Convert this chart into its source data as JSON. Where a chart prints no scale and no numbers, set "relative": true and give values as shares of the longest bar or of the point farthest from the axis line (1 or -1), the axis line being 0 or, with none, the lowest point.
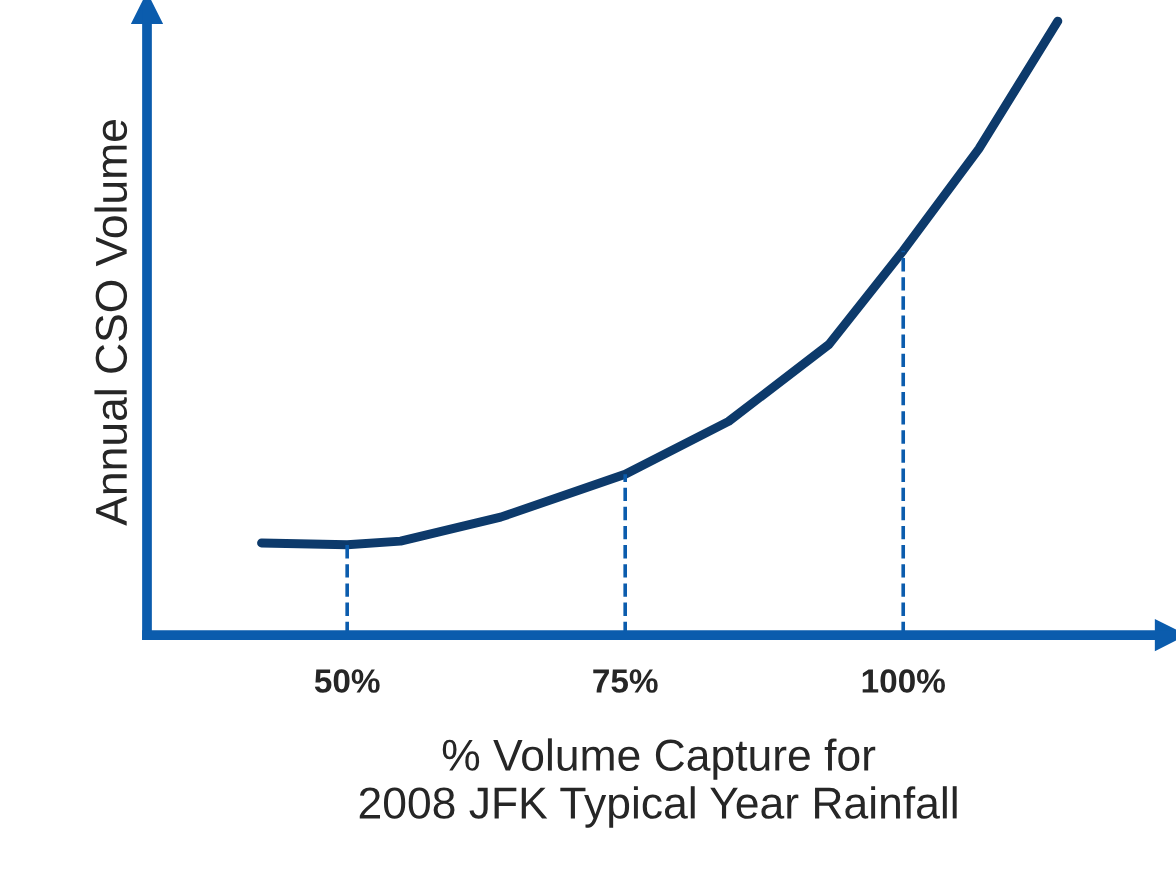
{
  "chart_data": {
    "type": "line",
    "relative": true,
    "xlabel": "% Volume Capture for\n2008 JFK Typical Year Rainfall",
    "ylabel": "Annual CSO Volume",
    "xlim": [
      32,
      124
    ],
    "xticks": [
      {
        "value": 50,
        "label": "50%"
      },
      {
        "value": 75,
        "label": "75%"
      },
      {
        "value": 100,
        "label": "100%"
      }
    ],
    "series": [
      {
        "color": "#0d3a6b",
        "x": [
          42.3,
          50,
          54.8,
          63.8,
          75,
          84.3,
          93.3,
          100,
          106.8,
          113.9
        ],
        "values": [
          0.15,
          0.147,
          0.153,
          0.192,
          0.262,
          0.348,
          0.473,
          0.626,
          0.792,
          1.0
        ]
      }
    ],
    "ref_lines": [
      {
        "axis": "x",
        "value": 50,
        "color": "#0b5cad",
        "line_style": "dashed"
      },
      {
        "axis": "x",
        "value": 75,
        "color": "#0b5cad",
        "line_style": "dashed"
      },
      {
        "axis": "x",
        "value": 100,
        "color": "#0b5cad",
        "line_style": "dashed"
      }
    ],
    "grid": false,
    "marker": "none",
    "line_style": "solid"
  }
}
